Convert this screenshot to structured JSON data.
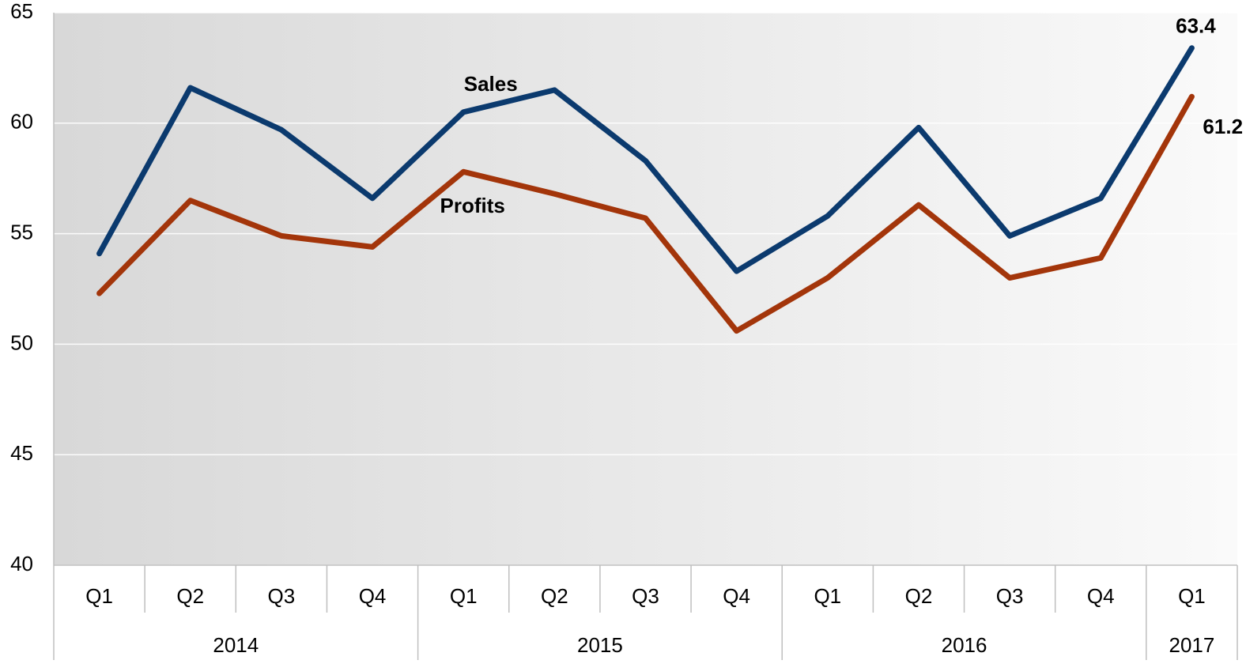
{
  "chart_data": {
    "type": "line",
    "x": [
      {
        "year": "2014",
        "quarter": "Q1"
      },
      {
        "year": "2014",
        "quarter": "Q2"
      },
      {
        "year": "2014",
        "quarter": "Q3"
      },
      {
        "year": "2014",
        "quarter": "Q4"
      },
      {
        "year": "2015",
        "quarter": "Q1"
      },
      {
        "year": "2015",
        "quarter": "Q2"
      },
      {
        "year": "2015",
        "quarter": "Q3"
      },
      {
        "year": "2015",
        "quarter": "Q4"
      },
      {
        "year": "2016",
        "quarter": "Q1"
      },
      {
        "year": "2016",
        "quarter": "Q2"
      },
      {
        "year": "2016",
        "quarter": "Q3"
      },
      {
        "year": "2016",
        "quarter": "Q4"
      },
      {
        "year": "2017",
        "quarter": "Q1"
      }
    ],
    "series": [
      {
        "name": "Sales",
        "color": "#0b3a6e",
        "values": [
          54.1,
          61.6,
          59.7,
          56.6,
          60.5,
          61.5,
          58.3,
          53.3,
          55.8,
          59.8,
          54.9,
          56.6,
          63.4
        ]
      },
      {
        "name": "Profits",
        "color": "#a3350a",
        "values": [
          52.3,
          56.5,
          54.9,
          54.4,
          57.8,
          56.8,
          55.7,
          50.6,
          53.0,
          56.3,
          53.0,
          53.9,
          61.2
        ]
      }
    ],
    "ylim": [
      40,
      65
    ],
    "yticks": [
      40,
      45,
      50,
      55,
      60,
      65
    ],
    "grid": true
  }
}
